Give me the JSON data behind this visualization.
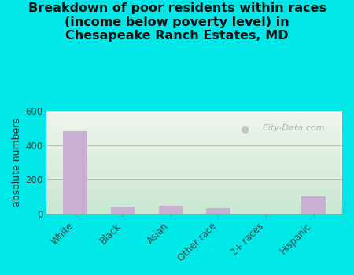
{
  "title": "Breakdown of poor residents within races\n(income below poverty level) in\nChesapeake Ranch Estates, MD",
  "categories": [
    "White",
    "Black",
    "Asian",
    "Other race",
    "2+ races",
    "Hispanic"
  ],
  "values": [
    480,
    40,
    45,
    30,
    0,
    100
  ],
  "bar_color": "#c9afd4",
  "ylabel": "absolute numbers",
  "ylim": [
    0,
    600
  ],
  "yticks": [
    0,
    200,
    400,
    600
  ],
  "background_outer": "#00e8e8",
  "bg_top_right": "#f0f5ee",
  "bg_bottom_left": "#c8e8d0",
  "watermark": "City-Data.com",
  "title_fontsize": 11.5,
  "ylabel_fontsize": 9,
  "tick_fontsize": 8.5
}
